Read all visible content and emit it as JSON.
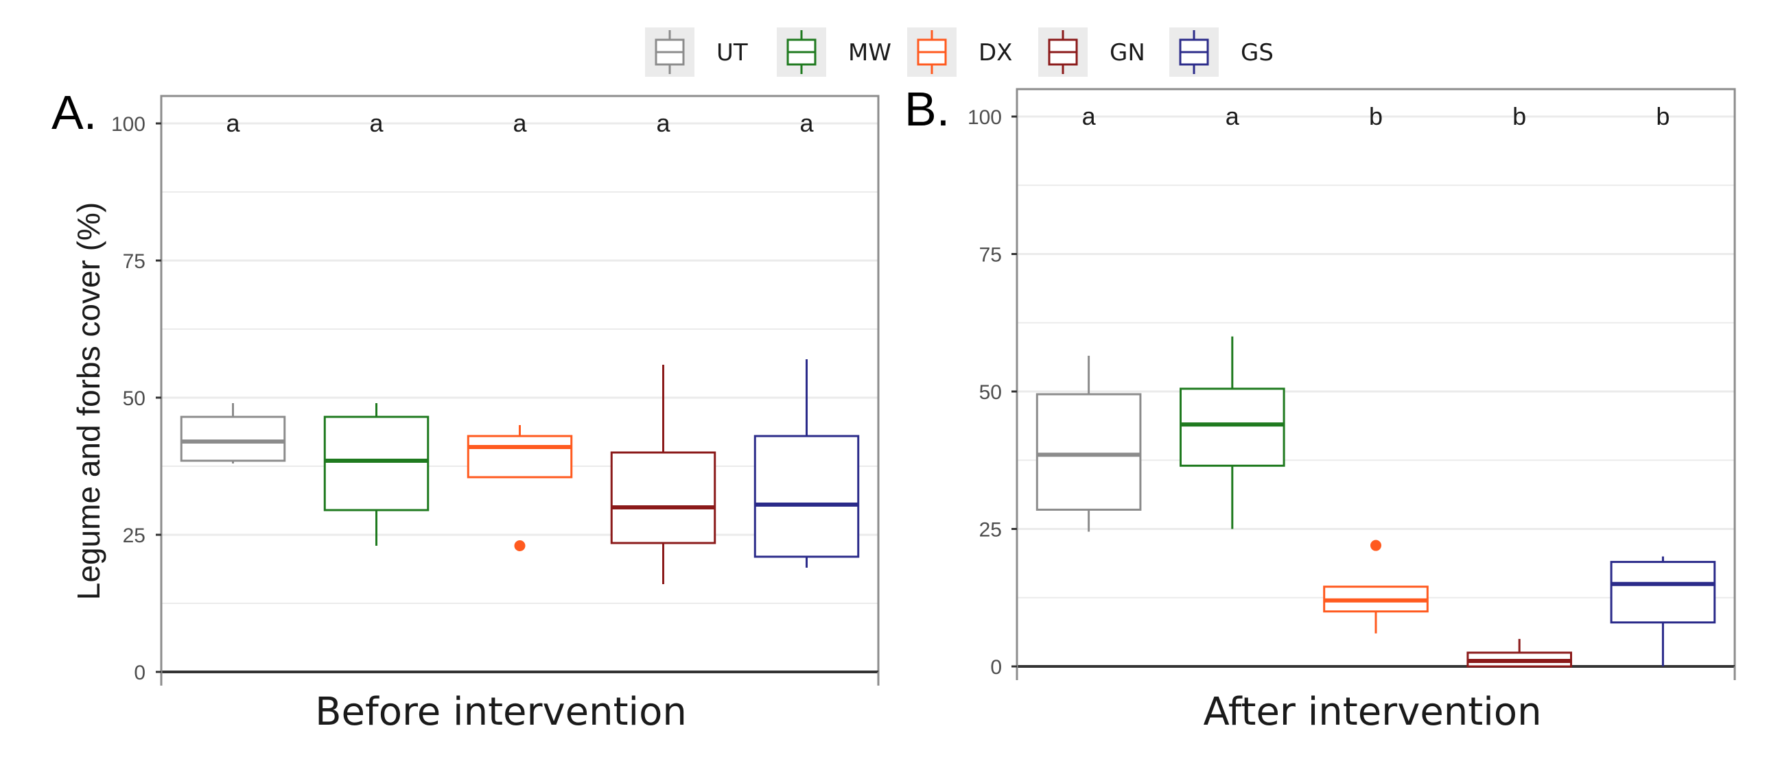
{
  "legend": [
    {
      "label": "UT",
      "color": "#8c8c8c"
    },
    {
      "label": "MW",
      "color": "#1f7a1f"
    },
    {
      "label": "DX",
      "color": "#ff5a1f"
    },
    {
      "label": "GN",
      "color": "#8b1a1a"
    },
    {
      "label": "GS",
      "color": "#2b2b8a"
    }
  ],
  "y_axis_title": "Legume and forbs cover (%)",
  "chart_data": [
    {
      "type": "box",
      "panel_label": "A.",
      "xlabel": "Before intervention",
      "ylabel": "Legume and forbs cover (%)",
      "ylim": [
        0,
        105
      ],
      "yticks": [
        0,
        25,
        50,
        75,
        100
      ],
      "grid": true,
      "categories": [
        "UT",
        "MW",
        "DX",
        "GN",
        "GS"
      ],
      "significance": [
        "a",
        "a",
        "a",
        "a",
        "a"
      ],
      "boxes": [
        {
          "name": "UT",
          "min": 38,
          "q1": 38.5,
          "median": 42,
          "q3": 46.5,
          "max": 49,
          "outliers": []
        },
        {
          "name": "MW",
          "min": 23,
          "q1": 29.5,
          "median": 38.5,
          "q3": 46.5,
          "max": 49,
          "outliers": []
        },
        {
          "name": "DX",
          "min": 35.5,
          "q1": 35.5,
          "median": 41,
          "q3": 43,
          "max": 45,
          "outliers": [
            23
          ]
        },
        {
          "name": "GN",
          "min": 16,
          "q1": 23.5,
          "median": 30,
          "q3": 40,
          "max": 56,
          "outliers": []
        },
        {
          "name": "GS",
          "min": 19,
          "q1": 21,
          "median": 30.5,
          "q3": 43,
          "max": 57,
          "outliers": []
        }
      ]
    },
    {
      "type": "box",
      "panel_label": "B.",
      "xlabel": "After intervention",
      "ylabel": "",
      "ylim": [
        0,
        105
      ],
      "yticks": [
        0,
        25,
        50,
        75,
        100
      ],
      "grid": true,
      "categories": [
        "UT",
        "MW",
        "DX",
        "GN",
        "GS"
      ],
      "significance": [
        "a",
        "a",
        "b",
        "b",
        "b"
      ],
      "boxes": [
        {
          "name": "UT",
          "min": 24.5,
          "q1": 28.5,
          "median": 38.5,
          "q3": 49.5,
          "max": 56.5,
          "outliers": []
        },
        {
          "name": "MW",
          "min": 25,
          "q1": 36.5,
          "median": 44,
          "q3": 50.5,
          "max": 60,
          "outliers": []
        },
        {
          "name": "DX",
          "min": 6,
          "q1": 10,
          "median": 12,
          "q3": 14.5,
          "max": 14.5,
          "outliers": [
            22
          ]
        },
        {
          "name": "GN",
          "min": 0,
          "q1": 0,
          "median": 1,
          "q3": 2.5,
          "max": 5,
          "outliers": []
        },
        {
          "name": "GS",
          "min": 0,
          "q1": 8,
          "median": 15,
          "q3": 19,
          "max": 20,
          "outliers": []
        }
      ]
    }
  ]
}
